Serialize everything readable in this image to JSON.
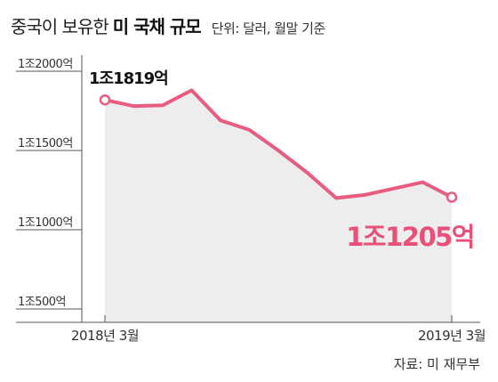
{
  "title": {
    "main": "중국이 보유한",
    "bold": "미 국채 규모",
    "unit": "단위: 달러, 월말 기준"
  },
  "source": "자료: 미 재무부",
  "colors": {
    "line": "#e85c7f",
    "area": "#ededed",
    "end_label": "#e8507a",
    "start_label": "#111111",
    "text": "#333333"
  },
  "chart_data": {
    "type": "area",
    "y_unit": "억 달러",
    "ylim": [
      5000,
      20000
    ],
    "grid": false,
    "y_ticks": [
      {
        "value": 20000,
        "label": "1조2000억"
      },
      {
        "value": 15000,
        "label": "1조1500억"
      },
      {
        "value": 10000,
        "label": "1조1000억"
      },
      {
        "value": 5000,
        "label": "1조500억"
      }
    ],
    "x_ticks": [
      {
        "index": 0,
        "label": "2018년 3월"
      },
      {
        "index": 12,
        "label": "2019년 3월"
      }
    ],
    "x": [
      "2018-03",
      "2018-04",
      "2018-05",
      "2018-06",
      "2018-07",
      "2018-08",
      "2018-09",
      "2018-10",
      "2018-11",
      "2018-12",
      "2019-01",
      "2019-02",
      "2019-03"
    ],
    "values": [
      18190,
      17800,
      17850,
      18800,
      16900,
      16300,
      15000,
      13600,
      12000,
      12200,
      12600,
      13000,
      12050
    ],
    "annotations": [
      {
        "index": 0,
        "label": "1조1819억"
      },
      {
        "index": 12,
        "label": "1조1205억"
      }
    ]
  }
}
